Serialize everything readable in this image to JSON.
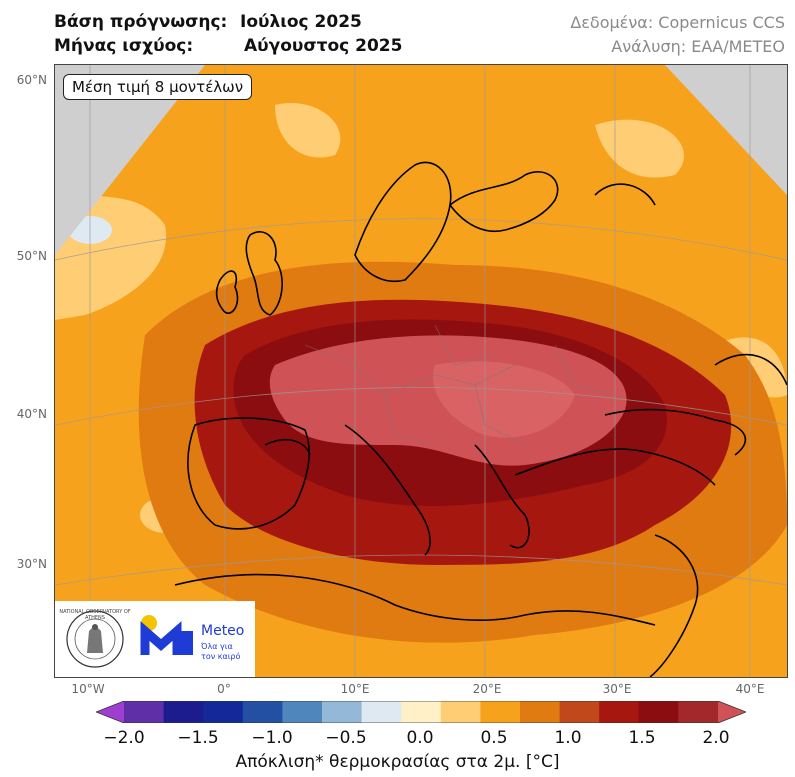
{
  "header": {
    "base_label": "Βάση πρόγνωσης:",
    "base_value": "Ιούλιος 2025",
    "valid_label": "Μήνας ισχύος:",
    "valid_value": "Αύγουστος 2025",
    "data_source": "Δεδομένα: Copernicus CCS",
    "analysis": "Ανάλυση: ΕΑΑ/METEO"
  },
  "map": {
    "model_note": "Μέση τιμή 8 μοντέλων",
    "lat_labels": [
      "60°N",
      "50°N",
      "40°N",
      "30°N"
    ],
    "lon_labels": [
      "10°W",
      "0°",
      "10°E",
      "20°E",
      "30°E",
      "40°E"
    ],
    "region": "Europe, North Africa, Middle East",
    "colors": {
      "no_data": "#cfcfcf",
      "anom_0_0_5": "#fed98e",
      "anom_0_5_1_0": "#f7a21c",
      "anom_1_0_1_5": "#e07b12",
      "anom_1_5_2_0": "#a5170f",
      "anom_gt_2": "#cf5356"
    }
  },
  "logos": {
    "observatory_seal_text": "NATIONAL OBSERVATORY OF ATHENS",
    "meteo_name": "Meteo",
    "meteo_tagline_1": "Όλα για",
    "meteo_tagline_2": "τον καιρό"
  },
  "colorbar": {
    "ticks": [
      "−2.0",
      "−1.5",
      "−1.0",
      "−0.5",
      "0.0",
      "0.5",
      "1.0",
      "1.5",
      "2.0"
    ],
    "label": "Απόκλιση* θερμοκρασίας στα 2μ. [°C]",
    "colors": [
      "#9e3fd1",
      "#5e2fa6",
      "#1d1c8f",
      "#15289a",
      "#2450a4",
      "#4f86bc",
      "#93b8d8",
      "#dfe9f2",
      "#fff0c8",
      "#fecd74",
      "#f7a21c",
      "#e07b12",
      "#c0481a",
      "#a5170f",
      "#8c0d10",
      "#a2282c",
      "#cf5356"
    ]
  }
}
